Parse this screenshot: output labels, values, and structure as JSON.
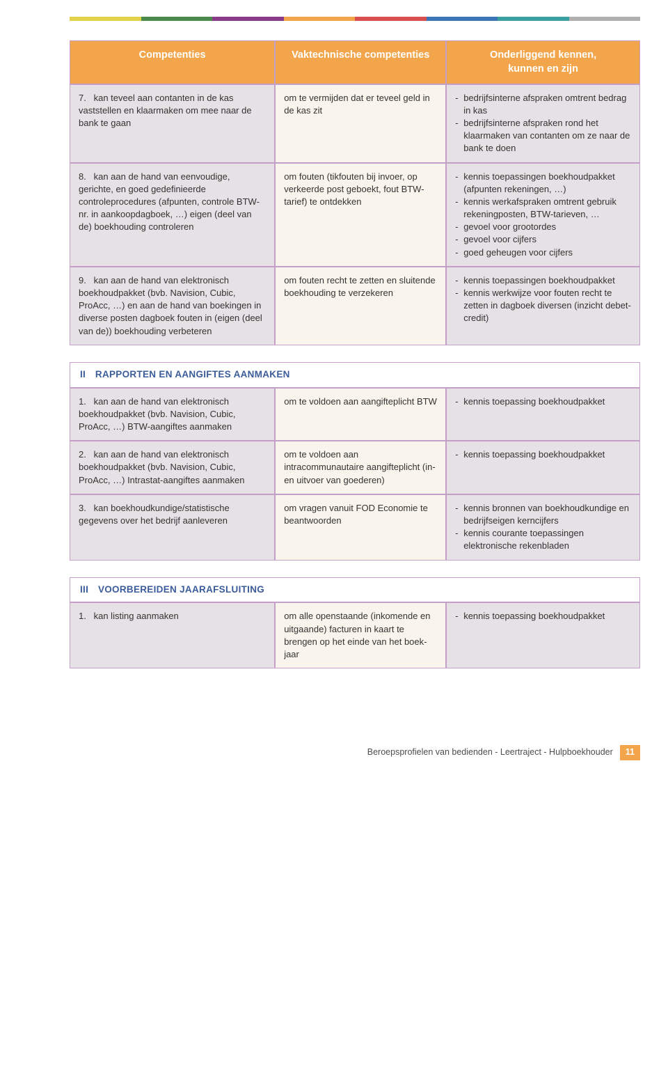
{
  "stripe_colors": [
    "#e0d24a",
    "#4c8a4c",
    "#8a3b8a",
    "#f3a54b",
    "#d94f4f",
    "#3b74b7",
    "#3aa0a0",
    "#b0b0b0"
  ],
  "header": {
    "col1": "Competenties",
    "col2": "Vaktechnische competenties",
    "col3a": "Onderliggend kennen,",
    "col3b": "kunnen en zijn"
  },
  "section1_rows": [
    {
      "num": "7.",
      "c1": "kan teveel aan contanten in de kas vaststellen en klaarmaken om mee naar de bank te gaan",
      "c2": "om te vermijden dat er teveel geld in de kas zit",
      "c3": [
        "bedrijfsinterne afspraken omtrent bedrag in kas",
        "bedrijfsinterne afspraken rond het klaarmaken van contanten om ze naar de bank te doen"
      ]
    },
    {
      "num": "8.",
      "c1": "kan aan de hand van eenvoudige, gerichte, en goed gedefinieerde controleprocedures (afpunten, controle BTW-nr. in aankoop­dagboek, …) eigen (deel van de) boekhouding controleren",
      "c2": "om fouten (tikfouten bij invoer, op verkeerde post geboekt, fout BTW-tarief) te ontdekken",
      "c3": [
        "kennis toepassingen boekhoud­pakket (afpunten rekeningen, …)",
        "kennis werkafspraken omtrent gebruik rekeningposten, BTW-tarieven, …",
        "gevoel voor grootordes",
        "gevoel voor cijfers",
        "goed geheugen voor cijfers"
      ]
    },
    {
      "num": "9.",
      "c1": "kan aan de hand van elektronisch boekhoudpakket (bvb. Navision, Cubic, ProAcc, …) en aan de hand van boekingen in diverse posten dagboek fouten in (eigen (deel van de)) boekhouding verbeteren",
      "c2": "om fouten recht te zetten en sluitende boekhouding te verzekeren",
      "c3": [
        "kennis toepassingen boekhoud­pakket",
        "kennis werkwijze voor fouten recht te zetten in dagboek diversen (inzicht debet-credit)"
      ]
    }
  ],
  "section2": {
    "title": "II RAPPORTEN EN AANGIFTES AANMAKEN",
    "rows": [
      {
        "num": "1.",
        "c1": "kan aan de hand van elektronisch boekhoudpakket (bvb. Navision, Cubic, ProAcc, …) BTW-aangiftes aanmaken",
        "c2": "om te voldoen aan aangifteplicht BTW",
        "c3": [
          "kennis toepassing boekhoudpakket"
        ]
      },
      {
        "num": "2.",
        "c1": "kan aan de hand van elektronisch boekhoudpakket (bvb. Navision, Cubic, ProAcc, …) Intrastat-aangiftes aanmaken",
        "c2": "om te voldoen aan intracommunautaire aangifteplicht (in- en uitvoer van goederen)",
        "c3": [
          "kennis toepassing boekhoudpakket"
        ]
      },
      {
        "num": "3.",
        "c1": "kan boekhoudkundige/statistische gegevens over het bedrijf aanleve­ren",
        "c2": "om vragen vanuit FOD Economie te beantwoorden",
        "c3": [
          "kennis bronnen van boekhoud­kundige en bedrijfseigen kerncijfers",
          "kennis courante toepassingen elektronische rekenbladen"
        ]
      }
    ]
  },
  "section3": {
    "title": "III VOORBEREIDEN JAARAFSLUITING",
    "rows": [
      {
        "num": "1.",
        "c1": "kan listing aanmaken",
        "c2": "om alle openstaande (inkomende en uitgaande) facturen in kaart te brengen op het einde van het boek­jaar",
        "c3": [
          "kennis toepassing boekhoudpakket"
        ]
      }
    ]
  },
  "footer": {
    "text": "Beroepsprofielen van bedienden - Leertraject - Hulpboekhouder",
    "page": "11"
  },
  "col_widths": [
    "36%",
    "30%",
    "34%"
  ],
  "theme": {
    "border_color": "#c49fc8",
    "header_bg": "#f3a54b",
    "header_fg": "#ffffff",
    "body_row_bg": "#e5e1e4",
    "col2_bg": "#faf5ec",
    "section_title_color": "#3b5c9b",
    "footer_bg": "#f3a54b"
  }
}
